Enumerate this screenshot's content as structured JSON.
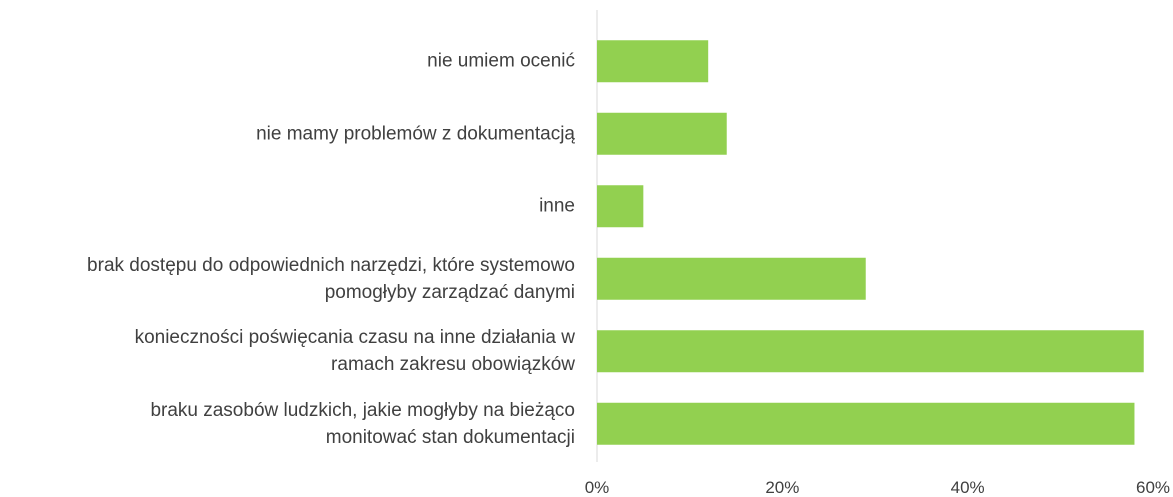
{
  "chart_data": {
    "type": "barh",
    "categories": [
      "nie umiem ocenić",
      "nie mamy problemów z dokumentacją",
      "inne",
      "brak dostępu do odpowiednich narzędzi, które systemowo\npomogłyby zarządzać danymi",
      "konieczności poświęcania czasu na inne działania w\nramach zakresu obowiązków",
      "braku zasobów ludzkich, jakie mogłyby na bieżąco\nmonitować stan dokumentacji"
    ],
    "values": [
      12,
      14,
      5,
      29,
      59,
      58
    ],
    "color": "#92d050",
    "xlim": [
      0,
      60
    ],
    "xticks": [
      {
        "value": 0,
        "label": "0%"
      },
      {
        "value": 20,
        "label": "20%"
      },
      {
        "value": 40,
        "label": "40%"
      },
      {
        "value": 60,
        "label": "60%"
      }
    ],
    "grid": false
  }
}
